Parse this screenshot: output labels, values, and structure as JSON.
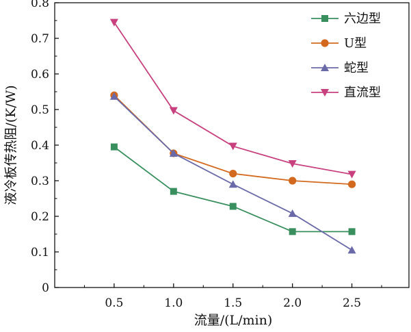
{
  "chart_data": {
    "type": "line",
    "title": "",
    "xlabel": "流量/(L/min)",
    "ylabel": "液冷板传热阻/(K/W)",
    "x": [
      0.5,
      1.0,
      1.5,
      2.0,
      2.5
    ],
    "x_tick_labels": [
      "0.5",
      "1.0",
      "1.5",
      "2.0",
      "2.5"
    ],
    "y_ticks": [
      "0",
      "0.1",
      "0.2",
      "0.3",
      "0.4",
      "0.5",
      "0.6",
      "0.7",
      "0.8"
    ],
    "xlim": [
      0.0,
      2.98
    ],
    "ylim": [
      0.0,
      0.8
    ],
    "grid": false,
    "legend_position": "top-right",
    "series": [
      {
        "name": "六边型",
        "values": [
          0.395,
          0.27,
          0.228,
          0.157,
          0.157
        ],
        "color": "#3a8f5f",
        "marker": "square"
      },
      {
        "name": "U型",
        "values": [
          0.54,
          0.377,
          0.32,
          0.3,
          0.29
        ],
        "color": "#d2691e",
        "marker": "circle"
      },
      {
        "name": "蛇型",
        "values": [
          0.537,
          0.377,
          0.29,
          0.208,
          0.105
        ],
        "color": "#6b6aa8",
        "marker": "triangle-up"
      },
      {
        "name": "直流型",
        "values": [
          0.745,
          0.497,
          0.397,
          0.348,
          0.318
        ],
        "color": "#c8407e",
        "marker": "triangle-down"
      }
    ]
  }
}
